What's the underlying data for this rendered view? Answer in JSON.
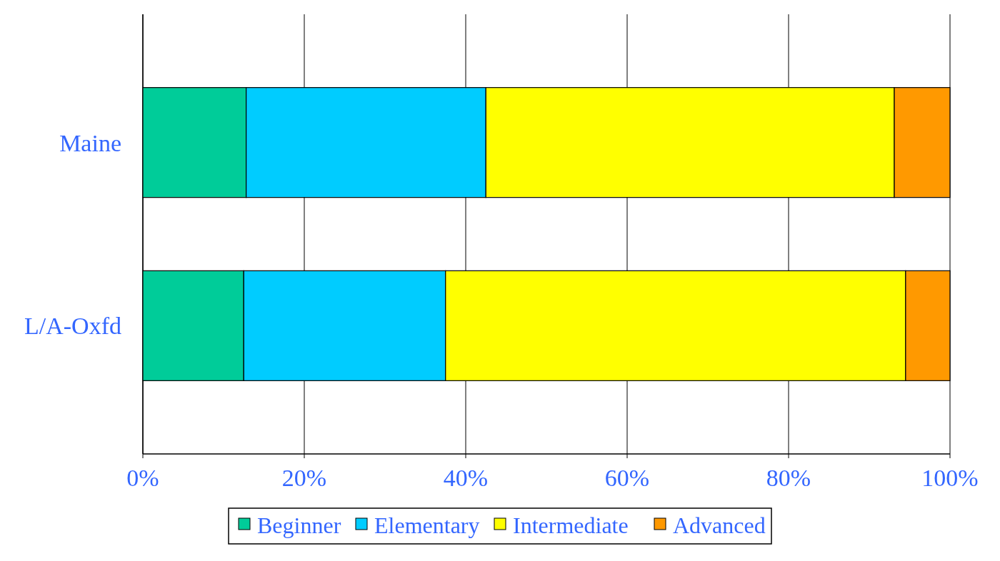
{
  "chart_data": {
    "type": "bar",
    "orientation": "horizontal",
    "stacked": true,
    "categories": [
      "Maine",
      "L/A-Oxfd"
    ],
    "series": [
      {
        "name": "Beginner",
        "color": "#00cc99",
        "values": [
          12.8,
          12.5
        ]
      },
      {
        "name": "Elementary",
        "color": "#00ccff",
        "values": [
          29.7,
          25.0
        ]
      },
      {
        "name": "Intermediate",
        "color": "#ffff00",
        "values": [
          50.6,
          57.0
        ]
      },
      {
        "name": "Advanced",
        "color": "#ff9900",
        "values": [
          6.9,
          5.5
        ]
      }
    ],
    "xlim": [
      0,
      100
    ],
    "xticks": [
      {
        "value": 0,
        "label": "0%"
      },
      {
        "value": 20,
        "label": "20%"
      },
      {
        "value": 40,
        "label": "40%"
      },
      {
        "value": 60,
        "label": "60%"
      },
      {
        "value": 80,
        "label": "80%"
      },
      {
        "value": 100,
        "label": "100%"
      }
    ],
    "grid": "x",
    "legend": "bottom"
  }
}
